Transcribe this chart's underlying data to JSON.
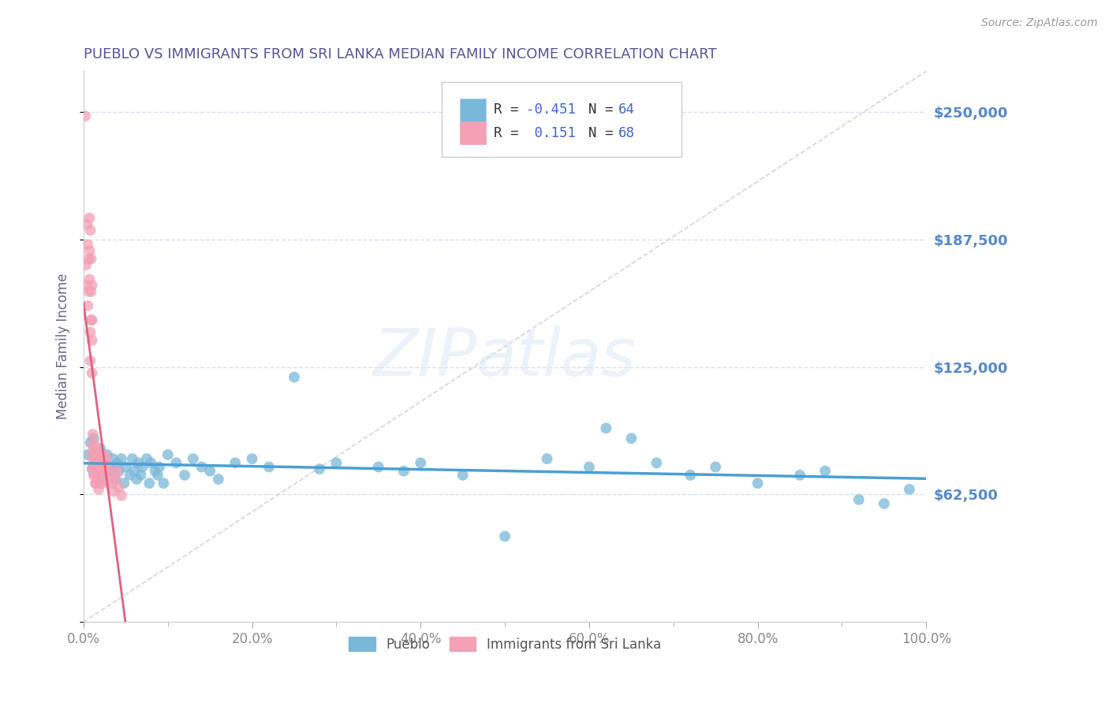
{
  "title": "PUEBLO VS IMMIGRANTS FROM SRI LANKA MEDIAN FAMILY INCOME CORRELATION CHART",
  "source": "Source: ZipAtlas.com",
  "ylabel": "Median Family Income",
  "watermark": "ZIPatlas",
  "xmin": 0.0,
  "xmax": 1.0,
  "ymin": 0,
  "ymax": 270000,
  "yticks": [
    0,
    62500,
    125000,
    187500,
    250000
  ],
  "ytick_labels": [
    "",
    "$62,500",
    "$125,000",
    "$187,500",
    "$250,000"
  ],
  "xtick_labels": [
    "0.0%",
    "20.0%",
    "40.0%",
    "60.0%",
    "80.0%",
    "100.0%"
  ],
  "xtick_positions": [
    0.0,
    0.2,
    0.4,
    0.6,
    0.8,
    1.0
  ],
  "pueblo_color": "#7ab8d9",
  "sri_lanka_color": "#f4a0b5",
  "pueblo_line_color": "#4a9fd4",
  "sri_lanka_line_color": "#e06080",
  "pueblo_R": -0.451,
  "pueblo_N": 64,
  "sri_lanka_R": 0.151,
  "sri_lanka_N": 68,
  "legend_label_1": "Pueblo",
  "legend_label_2": "Immigrants from Sri Lanka",
  "title_color": "#555599",
  "axis_label_color": "#666688",
  "ytick_color": "#5588cc",
  "grid_color": "#d8dff0",
  "diag_color": "#cccccc",
  "pueblo_scatter_x": [
    0.005,
    0.008,
    0.01,
    0.012,
    0.015,
    0.018,
    0.02,
    0.022,
    0.025,
    0.028,
    0.03,
    0.033,
    0.035,
    0.038,
    0.04,
    0.042,
    0.045,
    0.048,
    0.05,
    0.055,
    0.058,
    0.06,
    0.063,
    0.065,
    0.068,
    0.07,
    0.075,
    0.078,
    0.08,
    0.085,
    0.088,
    0.09,
    0.095,
    0.1,
    0.11,
    0.12,
    0.13,
    0.14,
    0.15,
    0.16,
    0.18,
    0.2,
    0.22,
    0.25,
    0.28,
    0.3,
    0.35,
    0.38,
    0.4,
    0.45,
    0.5,
    0.55,
    0.6,
    0.62,
    0.65,
    0.68,
    0.72,
    0.75,
    0.8,
    0.85,
    0.88,
    0.92,
    0.95,
    0.98
  ],
  "pueblo_scatter_y": [
    82000,
    88000,
    75000,
    90000,
    80000,
    70000,
    85000,
    78000,
    72000,
    82000,
    76000,
    74000,
    80000,
    70000,
    78000,
    74000,
    80000,
    68000,
    76000,
    72000,
    80000,
    74000,
    70000,
    78000,
    72000,
    76000,
    80000,
    68000,
    78000,
    74000,
    72000,
    76000,
    68000,
    82000,
    78000,
    72000,
    80000,
    76000,
    74000,
    70000,
    78000,
    80000,
    76000,
    120000,
    75000,
    78000,
    76000,
    74000,
    78000,
    72000,
    42000,
    80000,
    76000,
    95000,
    90000,
    78000,
    72000,
    76000,
    68000,
    72000,
    74000,
    60000,
    58000,
    65000
  ],
  "sri_lanka_scatter_x": [
    0.002,
    0.003,
    0.004,
    0.004,
    0.005,
    0.005,
    0.006,
    0.006,
    0.007,
    0.007,
    0.007,
    0.008,
    0.008,
    0.008,
    0.009,
    0.009,
    0.009,
    0.01,
    0.01,
    0.01,
    0.01,
    0.011,
    0.011,
    0.011,
    0.011,
    0.011,
    0.012,
    0.012,
    0.012,
    0.013,
    0.013,
    0.013,
    0.014,
    0.014,
    0.014,
    0.015,
    0.015,
    0.015,
    0.016,
    0.016,
    0.017,
    0.017,
    0.018,
    0.018,
    0.018,
    0.019,
    0.019,
    0.02,
    0.02,
    0.021,
    0.021,
    0.022,
    0.022,
    0.023,
    0.024,
    0.025,
    0.026,
    0.027,
    0.028,
    0.029,
    0.03,
    0.032,
    0.034,
    0.036,
    0.038,
    0.04,
    0.042,
    0.045
  ],
  "sri_lanka_scatter_y": [
    248000,
    175000,
    195000,
    165000,
    185000,
    155000,
    178000,
    162000,
    198000,
    182000,
    168000,
    192000,
    142000,
    128000,
    178000,
    162000,
    148000,
    165000,
    148000,
    138000,
    122000,
    92000,
    87000,
    84000,
    80000,
    76000,
    82000,
    76000,
    72000,
    87000,
    80000,
    72000,
    82000,
    76000,
    68000,
    80000,
    75000,
    68000,
    80000,
    72000,
    82000,
    75000,
    84000,
    72000,
    65000,
    76000,
    68000,
    80000,
    74000,
    82000,
    68000,
    76000,
    72000,
    80000,
    82000,
    78000,
    74000,
    80000,
    76000,
    68000,
    74000,
    72000,
    68000,
    64000,
    70000,
    74000,
    66000,
    62000
  ]
}
